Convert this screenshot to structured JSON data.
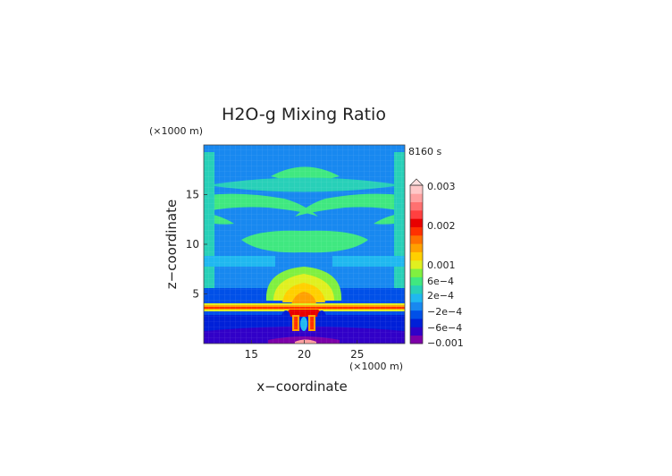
{
  "chart_data": {
    "type": "heatmap",
    "title": "H2O-g Mixing Ratio",
    "time_label": "8160 s",
    "xlabel": "x−coordinate",
    "ylabel": "z−coordinate",
    "x_unit": "(×1000 m)",
    "y_unit": "(×1000 m)",
    "xlim": [
      10.5,
      29.5
    ],
    "ylim": [
      0,
      20
    ],
    "x_ticks": [
      15,
      20,
      25
    ],
    "y_ticks": [
      5,
      10,
      15
    ],
    "x_tick_labels": [
      "15",
      "20",
      "25"
    ],
    "y_tick_labels": [
      "5",
      "10",
      "15"
    ],
    "grid": true,
    "colorbar": {
      "labels": [
        {
          "text": "0.003",
          "value": 0.003
        },
        {
          "text": "0.002",
          "value": 0.002
        },
        {
          "text": "0.001",
          "value": 0.001
        },
        {
          "text": "6e−4",
          "value": 0.0006
        },
        {
          "text": "2e−4",
          "value": 0.0002
        },
        {
          "text": "−2e−4",
          "value": -0.0002
        },
        {
          "text": "−6e−4",
          "value": -0.0006
        },
        {
          "text": "−0.001",
          "value": -0.001
        }
      ],
      "colors": [
        "#7d00a8",
        "#3100c8",
        "#0020d8",
        "#0050e8",
        "#1888f0",
        "#20b8f0",
        "#28d0b8",
        "#40e880",
        "#80f040",
        "#e0f020",
        "#ffd000",
        "#ffa000",
        "#ff7000",
        "#ff3000",
        "#e80000",
        "#ff4040",
        "#ff7070",
        "#ffa0a0",
        "#ffc8c8"
      ],
      "extend": "max"
    }
  }
}
